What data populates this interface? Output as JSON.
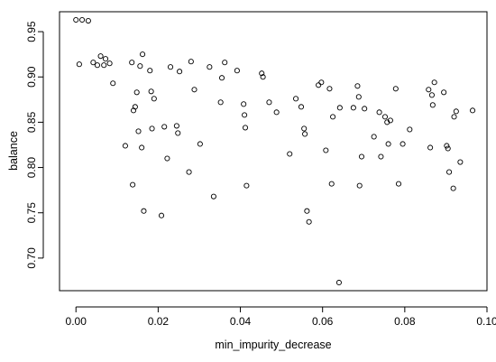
{
  "chart_data": {
    "type": "scatter",
    "title": "",
    "xlabel": "min_impurity_decrease",
    "ylabel": "balance",
    "xlim": [
      -0.004,
      0.1
    ],
    "ylim": [
      0.664,
      0.972
    ],
    "x_ticks": [
      0.0,
      0.02,
      0.04,
      0.06,
      0.08,
      0.1
    ],
    "x_tick_labels": [
      "0.00",
      "0.02",
      "0.04",
      "0.06",
      "0.08",
      "0.10"
    ],
    "y_ticks": [
      0.7,
      0.75,
      0.8,
      0.85,
      0.9,
      0.95
    ],
    "y_tick_labels": [
      "0.70",
      "0.75",
      "0.80",
      "0.85",
      "0.90",
      "0.95"
    ],
    "grid": false,
    "legend": null,
    "point_color": "#000000",
    "points": [
      [
        0.0,
        0.963
      ],
      [
        0.0015,
        0.963
      ],
      [
        0.003,
        0.962
      ],
      [
        0.0008,
        0.914
      ],
      [
        0.0042,
        0.916
      ],
      [
        0.0052,
        0.913
      ],
      [
        0.006,
        0.923
      ],
      [
        0.0068,
        0.913
      ],
      [
        0.0072,
        0.92
      ],
      [
        0.0082,
        0.915
      ],
      [
        0.009,
        0.893
      ],
      [
        0.012,
        0.824
      ],
      [
        0.0136,
        0.916
      ],
      [
        0.014,
        0.863
      ],
      [
        0.0144,
        0.867
      ],
      [
        0.0148,
        0.883
      ],
      [
        0.0152,
        0.84
      ],
      [
        0.0156,
        0.912
      ],
      [
        0.016,
        0.822
      ],
      [
        0.0162,
        0.925
      ],
      [
        0.0165,
        0.752
      ],
      [
        0.0138,
        0.781
      ],
      [
        0.018,
        0.907
      ],
      [
        0.0183,
        0.884
      ],
      [
        0.0185,
        0.843
      ],
      [
        0.019,
        0.876
      ],
      [
        0.0208,
        0.747
      ],
      [
        0.0215,
        0.845
      ],
      [
        0.0222,
        0.81
      ],
      [
        0.023,
        0.911
      ],
      [
        0.0245,
        0.846
      ],
      [
        0.0248,
        0.838
      ],
      [
        0.0252,
        0.906
      ],
      [
        0.0275,
        0.795
      ],
      [
        0.028,
        0.917
      ],
      [
        0.0288,
        0.886
      ],
      [
        0.0302,
        0.826
      ],
      [
        0.0325,
        0.911
      ],
      [
        0.0335,
        0.768
      ],
      [
        0.0352,
        0.872
      ],
      [
        0.0355,
        0.899
      ],
      [
        0.0362,
        0.916
      ],
      [
        0.0392,
        0.907
      ],
      [
        0.0408,
        0.87
      ],
      [
        0.041,
        0.858
      ],
      [
        0.0412,
        0.844
      ],
      [
        0.0415,
        0.78
      ],
      [
        0.0452,
        0.904
      ],
      [
        0.0455,
        0.9
      ],
      [
        0.047,
        0.872
      ],
      [
        0.0488,
        0.861
      ],
      [
        0.052,
        0.815
      ],
      [
        0.0535,
        0.876
      ],
      [
        0.0548,
        0.867
      ],
      [
        0.0555,
        0.843
      ],
      [
        0.0557,
        0.837
      ],
      [
        0.0562,
        0.752
      ],
      [
        0.0567,
        0.74
      ],
      [
        0.059,
        0.891
      ],
      [
        0.0597,
        0.894
      ],
      [
        0.0608,
        0.819
      ],
      [
        0.0617,
        0.887
      ],
      [
        0.0622,
        0.782
      ],
      [
        0.0625,
        0.856
      ],
      [
        0.064,
        0.673
      ],
      [
        0.0642,
        0.866
      ],
      [
        0.0675,
        0.866
      ],
      [
        0.0685,
        0.89
      ],
      [
        0.0688,
        0.878
      ],
      [
        0.069,
        0.78
      ],
      [
        0.0695,
        0.812
      ],
      [
        0.0702,
        0.865
      ],
      [
        0.0725,
        0.834
      ],
      [
        0.0738,
        0.861
      ],
      [
        0.0742,
        0.812
      ],
      [
        0.0752,
        0.856
      ],
      [
        0.0757,
        0.85
      ],
      [
        0.076,
        0.826
      ],
      [
        0.0765,
        0.852
      ],
      [
        0.0778,
        0.887
      ],
      [
        0.0785,
        0.782
      ],
      [
        0.0795,
        0.826
      ],
      [
        0.0812,
        0.842
      ],
      [
        0.0858,
        0.886
      ],
      [
        0.0862,
        0.822
      ],
      [
        0.0866,
        0.88
      ],
      [
        0.0868,
        0.869
      ],
      [
        0.0872,
        0.894
      ],
      [
        0.0895,
        0.883
      ],
      [
        0.0902,
        0.824
      ],
      [
        0.0905,
        0.821
      ],
      [
        0.0908,
        0.795
      ],
      [
        0.0918,
        0.777
      ],
      [
        0.092,
        0.856
      ],
      [
        0.0925,
        0.862
      ],
      [
        0.0935,
        0.806
      ],
      [
        0.0965,
        0.863
      ]
    ]
  }
}
